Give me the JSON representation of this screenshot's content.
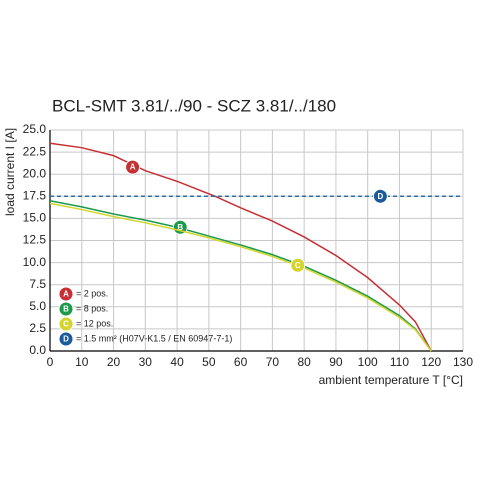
{
  "chart_data": {
    "type": "line",
    "title": "BCL-SMT 3.81/../90 - SCZ 3.81/../180",
    "x_label": "ambient temperature T [°C]",
    "y_label": "load current I [A]",
    "xlim": [
      0,
      130
    ],
    "xticks": [
      0,
      10,
      20,
      30,
      40,
      50,
      60,
      70,
      80,
      90,
      100,
      110,
      120,
      130
    ],
    "ylim": [
      0,
      25
    ],
    "yticks": [
      {
        "value": 0,
        "label": "0.0"
      },
      2.5,
      {
        "value": 5,
        "label": "5.0"
      },
      7.5,
      {
        "value": 10,
        "label": "10.0"
      },
      12.5,
      {
        "value": 15,
        "label": "15.0"
      },
      17.5,
      {
        "value": 20,
        "label": "20.0"
      },
      22.5,
      {
        "value": 25,
        "label": "25.0"
      }
    ],
    "grid": true,
    "series": [
      {
        "name": "= 2 pos.",
        "marker": "A",
        "color": "#c62f34",
        "marker_color": "#c62f34",
        "x": [
          0,
          10,
          20,
          30,
          40,
          52,
          60,
          70,
          80,
          90,
          100,
          110,
          115,
          120
        ],
        "values": [
          23.5,
          23.0,
          22.1,
          20.4,
          19.2,
          17.5,
          16.2,
          14.7,
          12.9,
          10.8,
          8.3,
          5.2,
          3.3,
          0
        ],
        "marker_x": 26,
        "marker_y": 20.8
      },
      {
        "name": "= 8 pos.",
        "marker": "B",
        "color": "#1c9a4c",
        "marker_color": "#1c9a4c",
        "x": [
          0,
          10,
          20,
          30,
          40,
          50,
          60,
          70,
          80,
          90,
          100,
          110,
          115,
          120
        ],
        "values": [
          17.0,
          16.3,
          15.5,
          14.8,
          14.0,
          13.0,
          12.0,
          10.9,
          9.6,
          8.0,
          6.2,
          4.0,
          2.5,
          0
        ],
        "marker_x": 41,
        "marker_y": 14.0
      },
      {
        "name": "= 12 pos.",
        "marker": "C",
        "color": "#d3d52c",
        "marker_color": "#d3d52c",
        "x": [
          0,
          10,
          20,
          30,
          40,
          50,
          60,
          70,
          80,
          90,
          100,
          110,
          115,
          120
        ],
        "values": [
          16.7,
          16.0,
          15.2,
          14.5,
          13.7,
          12.8,
          11.8,
          10.7,
          9.4,
          7.8,
          6.0,
          3.8,
          2.4,
          0
        ],
        "marker_x": 78,
        "marker_y": 9.7
      },
      {
        "name": "= 1.5 mm² (H07V-K1.5 / EN 60947-7-1)",
        "marker": "D",
        "color": "#2f6fa6",
        "marker_color": "#1b5b9c",
        "dashed": true,
        "x": [
          0,
          130
        ],
        "values": [
          17.5,
          17.5
        ],
        "marker_x": 104,
        "marker_y": 17.5
      }
    ]
  }
}
